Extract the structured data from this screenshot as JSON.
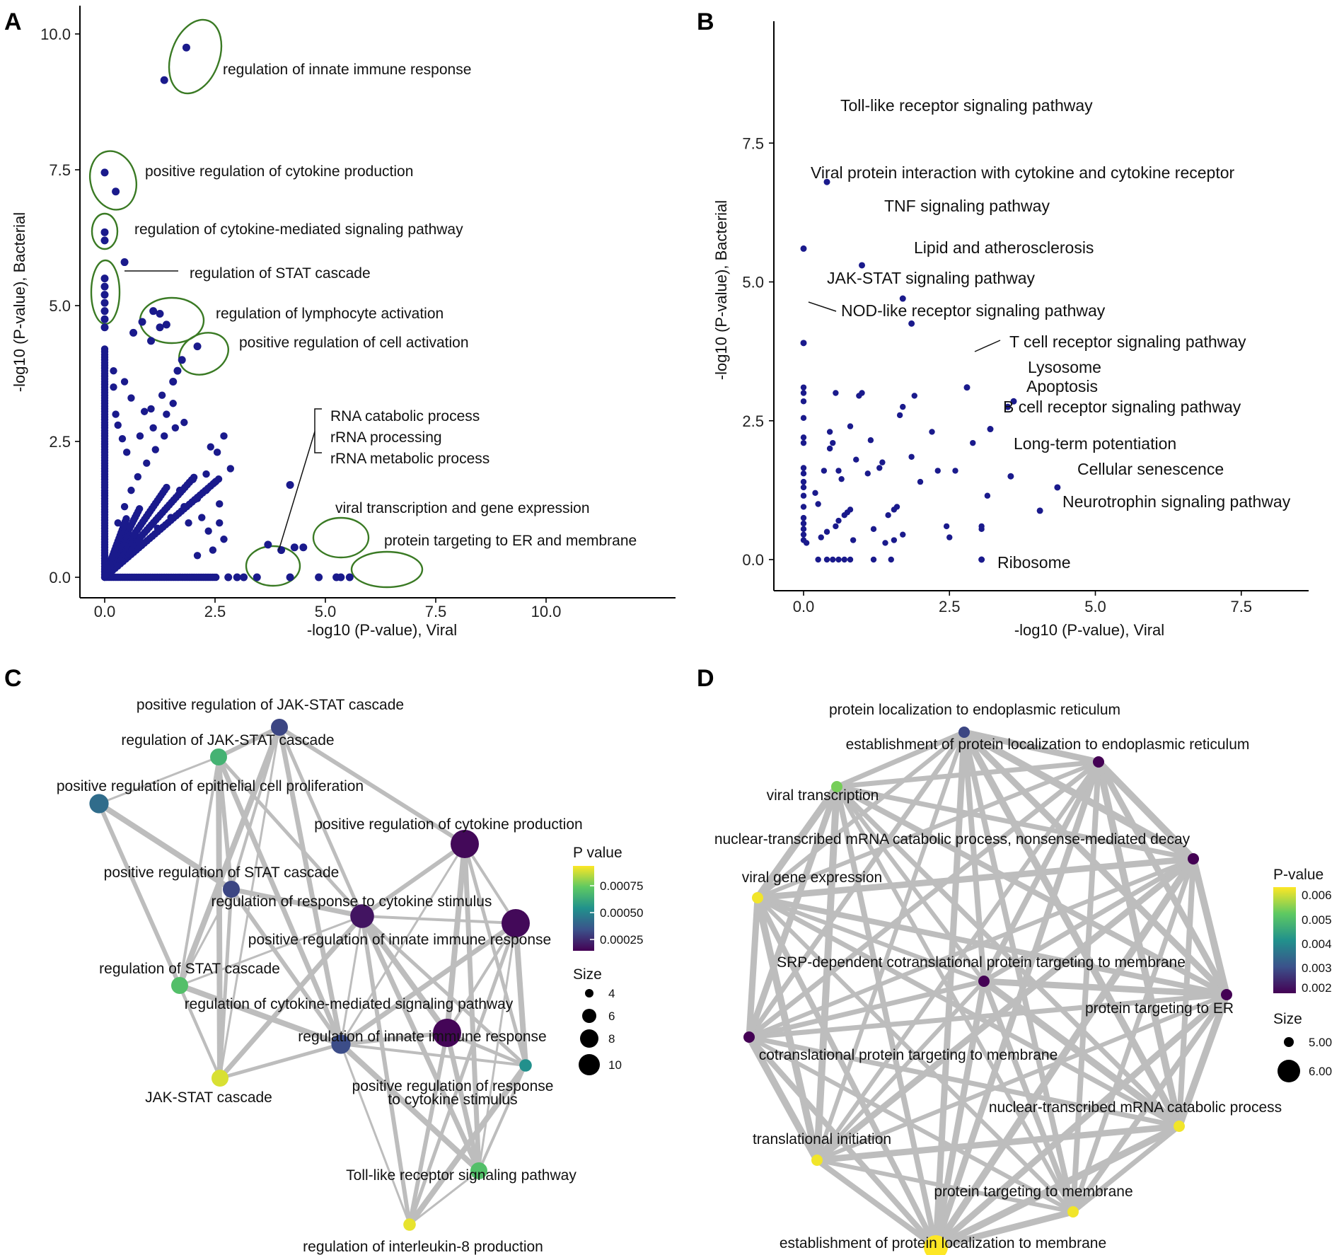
{
  "panels": {
    "A": "A",
    "B": "B",
    "C": "C",
    "D": "D"
  },
  "colors": {
    "point": "#1a1a8c",
    "ellipse": "#3a7a24",
    "edge": "#bdbdbd",
    "viridis": [
      "#440154",
      "#3b528b",
      "#21918c",
      "#5ec962",
      "#fde725"
    ]
  },
  "chart_data": [
    {
      "type": "scatter",
      "panel": "A",
      "xlabel": "-log10 (P-value), Viral",
      "ylabel": "-log10 (P-value), Bacterial",
      "xlim": [
        -0.5,
        10.5
      ],
      "ylim": [
        -0.3,
        10.4
      ],
      "xticks": [
        "0.0",
        "2.5",
        "5.0",
        "7.5",
        "10.0"
      ],
      "yticks": [
        "0.0",
        "2.5",
        "5.0",
        "7.5",
        "10.0"
      ],
      "grid": false,
      "highlight_points": [
        [
          1.85,
          9.75
        ],
        [
          1.35,
          9.15
        ],
        [
          0.0,
          7.45
        ],
        [
          0.25,
          7.1
        ],
        [
          0.0,
          6.35
        ],
        [
          0.0,
          6.2
        ],
        [
          0.45,
          5.8
        ],
        [
          0.0,
          5.5
        ],
        [
          0.0,
          5.35
        ],
        [
          0.0,
          5.2
        ],
        [
          0.0,
          5.05
        ],
        [
          0.0,
          4.9
        ],
        [
          0.0,
          4.75
        ],
        [
          0.0,
          4.6
        ],
        [
          1.1,
          4.9
        ],
        [
          1.25,
          4.85
        ],
        [
          0.85,
          4.7
        ],
        [
          1.4,
          4.65
        ],
        [
          0.65,
          4.5
        ],
        [
          1.25,
          4.6
        ],
        [
          1.05,
          4.35
        ],
        [
          2.1,
          4.25
        ],
        [
          1.75,
          4.0
        ],
        [
          1.65,
          3.8
        ],
        [
          1.55,
          3.6
        ],
        [
          4.2,
          1.7
        ],
        [
          3.7,
          0.6
        ],
        [
          4.0,
          0.5
        ],
        [
          4.3,
          0.55
        ],
        [
          4.5,
          0.55
        ],
        [
          2.8,
          0.0
        ],
        [
          3.0,
          0.0
        ],
        [
          3.15,
          0.0
        ],
        [
          3.45,
          0.0
        ],
        [
          4.2,
          0.0
        ],
        [
          4.85,
          0.0
        ],
        [
          5.25,
          0.0
        ],
        [
          5.35,
          0.0
        ],
        [
          5.55,
          0.0
        ]
      ],
      "clusters": [
        {
          "label": "regulation of innate immune response"
        },
        {
          "label": "positive regulation of cytokine production"
        },
        {
          "label": "regulation of cytokine-mediated signaling pathway"
        },
        {
          "label": "regulation of STAT cascade"
        },
        {
          "label": "regulation of lymphocyte activation"
        },
        {
          "label": "positive regulation of cell activation"
        },
        {
          "label": "RNA catabolic process"
        },
        {
          "label": "rRNA processing"
        },
        {
          "label": "rRNA metabolic process"
        },
        {
          "label": "viral transcription and gene expression"
        },
        {
          "label": "protein targeting to ER and membrane"
        }
      ]
    },
    {
      "type": "scatter",
      "panel": "B",
      "xlabel": "-log10 (P-value), Viral",
      "ylabel": "-log10 (P-value), Bacterial",
      "xlim": [
        -0.25,
        8.7
      ],
      "ylim": [
        -0.5,
        8.1
      ],
      "xticks": [
        "0.0",
        "2.5",
        "5.0",
        "7.5"
      ],
      "yticks": [
        "0.0",
        "2.5",
        "5.0",
        "7.5"
      ],
      "grid": false,
      "labeled_points": [
        {
          "label": "Toll-like receptor signaling pathway",
          "x": 0.4,
          "y": 6.8
        },
        {
          "label": "Viral protein interaction with cytokine and cytokine receptor",
          "x": 0.0,
          "y": 5.6
        },
        {
          "label": "TNF signaling pathway",
          "x": 1.0,
          "y": 5.3
        },
        {
          "label": "Lipid and atherosclerosis",
          "x": 1.7,
          "y": 4.7
        },
        {
          "label": "JAK-STAT signaling pathway",
          "x": 1.85,
          "y": 4.25
        },
        {
          "label": "NOD-like receptor signaling pathway",
          "x": 0.0,
          "y": 3.9
        },
        {
          "label": "T cell receptor signaling pathway",
          "x": 2.8,
          "y": 3.1
        },
        {
          "label": "Lysosome",
          "x": 3.6,
          "y": 2.85
        },
        {
          "label": "Apoptosis",
          "x": 3.5,
          "y": 2.75
        },
        {
          "label": "B cell receptor signaling pathway",
          "x": 3.2,
          "y": 2.35
        },
        {
          "label": "Long-term potentiation",
          "x": 3.55,
          "y": 1.5
        },
        {
          "label": "Cellular senescence",
          "x": 4.35,
          "y": 1.3
        },
        {
          "label": "Neurotrophin signaling pathway",
          "x": 4.05,
          "y": 0.88
        },
        {
          "label": "Ribosome",
          "x": 3.05,
          "y": 0.0
        }
      ],
      "other_points": [
        [
          0.0,
          3.1
        ],
        [
          0.0,
          3.0
        ],
        [
          0.0,
          2.85
        ],
        [
          0.0,
          2.55
        ],
        [
          0.0,
          2.2
        ],
        [
          0.0,
          2.1
        ],
        [
          0.0,
          1.65
        ],
        [
          0.0,
          1.55
        ],
        [
          0.0,
          1.4
        ],
        [
          0.0,
          1.3
        ],
        [
          0.0,
          1.15
        ],
        [
          0.0,
          0.95
        ],
        [
          0.0,
          0.75
        ],
        [
          0.0,
          0.65
        ],
        [
          0.0,
          0.55
        ],
        [
          0.0,
          0.45
        ],
        [
          0.0,
          0.35
        ],
        [
          0.05,
          0.3
        ],
        [
          0.25,
          0.0
        ],
        [
          0.4,
          0.0
        ],
        [
          0.5,
          0.0
        ],
        [
          0.6,
          0.0
        ],
        [
          0.7,
          0.0
        ],
        [
          0.8,
          0.0
        ],
        [
          1.2,
          0.0
        ],
        [
          1.5,
          0.0
        ],
        [
          0.25,
          1.0
        ],
        [
          0.3,
          0.4
        ],
        [
          0.35,
          1.6
        ],
        [
          0.4,
          0.5
        ],
        [
          0.45,
          2.0
        ],
        [
          0.5,
          2.1
        ],
        [
          0.55,
          0.6
        ],
        [
          0.6,
          0.7
        ],
        [
          0.65,
          1.45
        ],
        [
          0.7,
          0.8
        ],
        [
          0.75,
          0.85
        ],
        [
          0.8,
          0.9
        ],
        [
          0.45,
          2.3
        ],
        [
          0.6,
          1.6
        ],
        [
          0.8,
          2.4
        ],
        [
          0.95,
          2.95
        ],
        [
          0.9,
          1.8
        ],
        [
          0.85,
          0.35
        ],
        [
          1.0,
          3.0
        ],
        [
          1.15,
          2.15
        ],
        [
          1.1,
          1.55
        ],
        [
          1.2,
          0.55
        ],
        [
          1.3,
          1.65
        ],
        [
          1.35,
          1.75
        ],
        [
          1.45,
          0.8
        ],
        [
          1.55,
          0.9
        ],
        [
          1.6,
          0.95
        ],
        [
          1.65,
          2.6
        ],
        [
          1.7,
          2.75
        ],
        [
          1.7,
          0.45
        ],
        [
          1.85,
          1.85
        ],
        [
          1.9,
          2.95
        ],
        [
          2.0,
          1.4
        ],
        [
          1.4,
          0.3
        ],
        [
          1.55,
          0.35
        ],
        [
          2.2,
          2.3
        ],
        [
          2.3,
          1.6
        ],
        [
          2.45,
          0.6
        ],
        [
          2.5,
          0.4
        ],
        [
          2.6,
          1.6
        ],
        [
          2.9,
          2.1
        ],
        [
          3.05,
          0.55
        ],
        [
          3.05,
          0.6
        ],
        [
          3.15,
          1.15
        ],
        [
          0.55,
          3.0
        ],
        [
          0.2,
          1.2
        ]
      ]
    },
    {
      "type": "network",
      "panel": "C",
      "legend": {
        "color_title": "P value",
        "color_ticks": [
          "0.00075",
          "0.00050",
          "0.00025"
        ],
        "size_title": "Size",
        "size_ticks": [
          "4",
          "6",
          "8",
          "10"
        ]
      },
      "nodes": [
        {
          "id": "c0",
          "label": "positive regulation of JAK-STAT cascade",
          "p": 0.00018,
          "size": 5
        },
        {
          "id": "c1",
          "label": "regulation of JAK-STAT cascade",
          "p": 0.00055,
          "size": 5
        },
        {
          "id": "c2",
          "label": "positive regulation of epithelial cell proliferation",
          "p": 0.0003,
          "size": 6
        },
        {
          "id": "c3",
          "label": "positive regulation of cytokine production",
          "p": 2e-05,
          "size": 10
        },
        {
          "id": "c4",
          "label": "positive regulation of STAT cascade",
          "p": 0.00018,
          "size": 5
        },
        {
          "id": "c5",
          "label": "regulation of response to cytokine stimulus",
          "p": 5e-05,
          "size": 8
        },
        {
          "id": "c6",
          "label": "positive regulation of innate immune response",
          "p": 2e-05,
          "size": 10
        },
        {
          "id": "c7",
          "label": "regulation of STAT cascade",
          "p": 0.0006,
          "size": 5
        },
        {
          "id": "c8",
          "label": "regulation of cytokine-mediated signaling pathway",
          "p": 0.0002,
          "size": 6
        },
        {
          "id": "c9",
          "label": "regulation of innate immune response",
          "p": 1e-05,
          "size": 10
        },
        {
          "id": "c10",
          "label": "positive regulation of response to cytokine stimulus",
          "p": 0.00042,
          "size": 3
        },
        {
          "id": "c11",
          "label": "JAK-STAT cascade",
          "p": 0.0008,
          "size": 5
        },
        {
          "id": "c12",
          "label": "Toll-like receptor signaling pathway",
          "p": 0.0006,
          "size": 5
        },
        {
          "id": "c13",
          "label": "regulation of interleukin-8 production",
          "p": 0.00082,
          "size": 3
        }
      ],
      "edges": [
        [
          "c0",
          "c1"
        ],
        [
          "c0",
          "c4"
        ],
        [
          "c0",
          "c7"
        ],
        [
          "c0",
          "c11"
        ],
        [
          "c0",
          "c5"
        ],
        [
          "c0",
          "c8"
        ],
        [
          "c1",
          "c4"
        ],
        [
          "c1",
          "c7"
        ],
        [
          "c1",
          "c11"
        ],
        [
          "c1",
          "c2"
        ],
        [
          "c1",
          "c5"
        ],
        [
          "c1",
          "c8"
        ],
        [
          "c2",
          "c7"
        ],
        [
          "c2",
          "c11"
        ],
        [
          "c2",
          "c4"
        ],
        [
          "c4",
          "c7"
        ],
        [
          "c4",
          "c11"
        ],
        [
          "c4",
          "c5"
        ],
        [
          "c4",
          "c8"
        ],
        [
          "c7",
          "c11"
        ],
        [
          "c7",
          "c8"
        ],
        [
          "c7",
          "c5"
        ],
        [
          "c8",
          "c11"
        ],
        [
          "c5",
          "c11"
        ],
        [
          "c3",
          "c5"
        ],
        [
          "c3",
          "c6"
        ],
        [
          "c3",
          "c9"
        ],
        [
          "c3",
          "c8"
        ],
        [
          "c3",
          "c10"
        ],
        [
          "c3",
          "c12"
        ],
        [
          "c3",
          "c0"
        ],
        [
          "c5",
          "c6"
        ],
        [
          "c5",
          "c9"
        ],
        [
          "c5",
          "c8"
        ],
        [
          "c5",
          "c10"
        ],
        [
          "c5",
          "c12"
        ],
        [
          "c5",
          "c13"
        ],
        [
          "c6",
          "c9"
        ],
        [
          "c6",
          "c10"
        ],
        [
          "c6",
          "c12"
        ],
        [
          "c6",
          "c13"
        ],
        [
          "c6",
          "c8"
        ],
        [
          "c8",
          "c9"
        ],
        [
          "c8",
          "c10"
        ],
        [
          "c8",
          "c12"
        ],
        [
          "c8",
          "c13"
        ],
        [
          "c9",
          "c10"
        ],
        [
          "c9",
          "c12"
        ],
        [
          "c9",
          "c13"
        ],
        [
          "c10",
          "c12"
        ],
        [
          "c10",
          "c13"
        ],
        [
          "c12",
          "c13"
        ]
      ]
    },
    {
      "type": "network",
      "panel": "D",
      "legend": {
        "color_title": "P-value",
        "color_ticks": [
          "0.006",
          "0.005",
          "0.004",
          "0.003",
          "0.002"
        ],
        "size_title": "Size",
        "size_ticks": [
          "5.00",
          "6.00"
        ]
      },
      "nodes": [
        {
          "id": "d0",
          "label": "protein localization to endoplasmic reticulum",
          "p": 0.0022,
          "size": 5
        },
        {
          "id": "d1",
          "label": "establishment of protein localization to endoplasmic reticulum",
          "p": 0.0011,
          "size": 5
        },
        {
          "id": "d2",
          "label": "viral transcription",
          "p": 0.0052,
          "size": 5
        },
        {
          "id": "d3",
          "label": "nuclear-transcribed mRNA catabolic process, nonsense-mediated decay",
          "p": 0.0011,
          "size": 5
        },
        {
          "id": "d4",
          "label": "viral gene expression",
          "p": 0.0062,
          "size": 5
        },
        {
          "id": "d5",
          "label": "SRP-dependent cotranslational protein targeting to membrane",
          "p": 0.0011,
          "size": 5
        },
        {
          "id": "d6",
          "label": "protein targeting to ER",
          "p": 0.0011,
          "size": 5
        },
        {
          "id": "d7",
          "label": "cotranslational protein targeting to membrane",
          "p": 0.0011,
          "size": 5
        },
        {
          "id": "d8",
          "label": "nuclear-transcribed mRNA catabolic process",
          "p": 0.0062,
          "size": 5
        },
        {
          "id": "d9",
          "label": "translational initiation",
          "p": 0.0062,
          "size": 5
        },
        {
          "id": "d10",
          "label": "protein targeting to membrane",
          "p": 0.0062,
          "size": 5
        },
        {
          "id": "d11",
          "label": "establishment of protein localization to membrane",
          "p": 0.0063,
          "size": 6
        }
      ]
    }
  ]
}
